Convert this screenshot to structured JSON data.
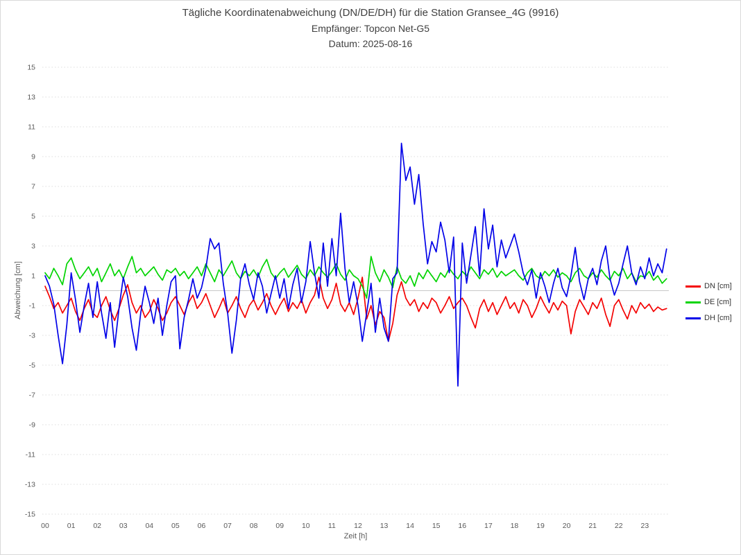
{
  "header": {
    "title": "Tägliche Koordinatenabweichung (DN/DE/DH) für die Station Gransee_4G (9916)",
    "subtitle_receiver": "Empfänger: Topcon Net-G5",
    "subtitle_date": "Datum: 2025-08-16"
  },
  "chart_data": {
    "type": "line",
    "title": "Tägliche Koordinatenabweichung (DN/DE/DH) für die Station Gransee_4G (9916)",
    "subtitle": "Empfänger: Topcon Net-G5 — Datum: 2025-08-16",
    "xlabel": "Zeit [h]",
    "ylabel": "Abweichung [cm]",
    "xlim": [
      0,
      24
    ],
    "ylim": [
      -15,
      15
    ],
    "grid": {
      "visible": true,
      "style": "dotted",
      "color": "#dcdcdc",
      "zero_line_color": "#c8c8c8"
    },
    "legend_position": "right-outside",
    "x_tick_labels": [
      "00",
      "01",
      "02",
      "03",
      "04",
      "05",
      "06",
      "07",
      "08",
      "09",
      "10",
      "11",
      "12",
      "13",
      "14",
      "15",
      "16",
      "17",
      "18",
      "19",
      "20",
      "21",
      "22",
      "23"
    ],
    "y_ticks": [
      15,
      13,
      11,
      9,
      7,
      5,
      3,
      1,
      -1,
      -3,
      -5,
      -7,
      -9,
      -11,
      -13,
      -15
    ],
    "x_start_hour": 0,
    "sampling_interval_minutes": 10,
    "series": [
      {
        "name": "DN [cm]",
        "color": "#f40000",
        "values": [
          0.3,
          -0.4,
          -1.2,
          -0.8,
          -1.5,
          -1.0,
          -0.5,
          -1.4,
          -2.0,
          -1.2,
          -0.6,
          -1.5,
          -1.8,
          -1.0,
          -0.4,
          -1.3,
          -2.0,
          -1.2,
          -0.3,
          0.4,
          -0.8,
          -1.5,
          -1.0,
          -1.8,
          -1.4,
          -0.6,
          -1.2,
          -2.0,
          -1.5,
          -0.8,
          -0.4,
          -1.0,
          -1.6,
          -0.8,
          -0.3,
          -1.2,
          -0.8,
          -0.2,
          -1.0,
          -1.8,
          -1.2,
          -0.5,
          -1.5,
          -1.0,
          -0.4,
          -1.2,
          -1.8,
          -1.0,
          -0.6,
          -1.3,
          -0.8,
          -0.2,
          -1.0,
          -1.6,
          -1.0,
          -0.5,
          -1.4,
          -0.8,
          -1.2,
          -0.6,
          -1.5,
          -0.8,
          -0.3,
          0.9,
          -0.5,
          -1.2,
          -0.6,
          0.5,
          -0.9,
          -1.4,
          -0.8,
          -1.6,
          -0.5,
          0.9,
          -1.9,
          -1.0,
          -2.3,
          -1.4,
          -1.8,
          -3.4,
          -2.2,
          -0.3,
          0.6,
          -0.5,
          -1.0,
          -0.6,
          -1.4,
          -0.8,
          -1.2,
          -0.5,
          -0.8,
          -1.5,
          -1.0,
          -0.4,
          -1.2,
          -0.8,
          -0.5,
          -1.0,
          -1.8,
          -2.5,
          -1.2,
          -0.6,
          -1.4,
          -0.8,
          -1.6,
          -1.0,
          -0.4,
          -1.2,
          -0.8,
          -1.5,
          -0.6,
          -1.0,
          -1.8,
          -1.2,
          -0.4,
          -1.0,
          -1.5,
          -0.8,
          -1.3,
          -0.7,
          -1.0,
          -2.9,
          -1.4,
          -0.6,
          -1.1,
          -1.6,
          -0.8,
          -1.2,
          -0.5,
          -1.6,
          -2.4,
          -1.0,
          -0.6,
          -1.3,
          -1.9,
          -1.0,
          -1.5,
          -0.8,
          -1.2,
          -0.9,
          -1.4,
          -1.1,
          -1.3,
          -1.2
        ]
      },
      {
        "name": "DE [cm]",
        "color": "#00d400",
        "values": [
          1.2,
          0.8,
          1.5,
          1.0,
          0.4,
          1.8,
          2.2,
          1.4,
          0.8,
          1.2,
          1.6,
          1.0,
          1.5,
          0.6,
          1.2,
          1.8,
          1.0,
          1.4,
          0.8,
          1.6,
          2.3,
          1.2,
          1.5,
          1.0,
          1.3,
          1.6,
          1.1,
          0.7,
          1.4,
          1.2,
          1.5,
          1.0,
          1.3,
          0.8,
          1.2,
          1.6,
          1.0,
          1.8,
          1.2,
          0.6,
          1.4,
          1.0,
          1.5,
          2.0,
          1.2,
          0.8,
          1.3,
          1.0,
          1.4,
          0.9,
          1.6,
          2.1,
          1.2,
          0.8,
          1.2,
          1.5,
          0.9,
          1.3,
          1.7,
          1.1,
          0.8,
          1.4,
          1.0,
          1.6,
          1.2,
          0.9,
          1.3,
          1.8,
          1.1,
          0.7,
          1.4,
          1.0,
          0.8,
          0.3,
          -0.5,
          2.3,
          1.2,
          0.6,
          1.4,
          0.9,
          0.2,
          1.6,
          0.8,
          0.5,
          1.0,
          0.3,
          1.2,
          0.8,
          1.4,
          1.0,
          0.6,
          1.2,
          0.9,
          1.5,
          1.1,
          0.8,
          1.3,
          1.0,
          1.6,
          1.2,
          0.8,
          1.4,
          1.1,
          1.5,
          0.9,
          1.3,
          1.0,
          1.2,
          1.4,
          1.0,
          0.7,
          1.2,
          1.5,
          1.0,
          0.8,
          1.3,
          1.0,
          1.4,
          0.9,
          1.2,
          1.0,
          0.6,
          1.2,
          1.5,
          1.0,
          0.8,
          1.2,
          0.9,
          1.4,
          1.0,
          0.7,
          1.3,
          1.0,
          1.5,
          0.8,
          1.2,
          0.6,
          1.0,
          0.9,
          1.3,
          0.7,
          1.0,
          0.5,
          0.8
        ]
      },
      {
        "name": "DH [cm]",
        "color": "#0000e8",
        "values": [
          1.0,
          0.3,
          -0.9,
          -3.0,
          -4.9,
          -2.3,
          1.2,
          -0.6,
          -2.8,
          -1.0,
          0.5,
          -1.8,
          0.6,
          -1.5,
          -3.2,
          -0.8,
          -3.8,
          -1.2,
          0.9,
          -0.4,
          -2.5,
          -4.0,
          -1.5,
          0.3,
          -0.8,
          -2.2,
          -0.5,
          -3.0,
          -1.0,
          0.6,
          1.0,
          -3.9,
          -1.8,
          -0.6,
          0.8,
          -0.5,
          0.2,
          1.5,
          3.5,
          2.8,
          3.2,
          0.5,
          -1.5,
          -4.2,
          -2.0,
          0.8,
          1.8,
          0.4,
          -0.6,
          1.2,
          0.3,
          -1.5,
          -0.2,
          1.0,
          -0.5,
          0.8,
          -1.2,
          0.4,
          1.5,
          -0.8,
          0.6,
          3.3,
          1.2,
          -0.5,
          3.2,
          0.3,
          3.5,
          1.0,
          5.2,
          1.5,
          -0.8,
          0.6,
          -1.0,
          -3.4,
          -1.5,
          0.5,
          -2.8,
          -0.5,
          -2.5,
          -3.4,
          0.8,
          1.2,
          9.9,
          7.4,
          8.3,
          5.8,
          7.8,
          4.5,
          1.8,
          3.3,
          2.6,
          4.6,
          3.4,
          1.2,
          3.6,
          -6.4,
          3.2,
          0.5,
          2.4,
          4.3,
          1.0,
          5.5,
          2.8,
          4.4,
          1.6,
          3.4,
          2.2,
          3.0,
          3.8,
          2.6,
          1.2,
          0.4,
          1.4,
          -0.5,
          1.2,
          0.3,
          -0.8,
          0.5,
          1.5,
          0.2,
          -0.4,
          1.0,
          2.9,
          0.6,
          -0.6,
          0.8,
          1.5,
          0.4,
          2.0,
          3.0,
          0.8,
          -0.3,
          0.5,
          1.8,
          3.0,
          1.2,
          0.4,
          1.6,
          0.8,
          2.2,
          1.0,
          1.8,
          1.2,
          2.8
        ]
      }
    ]
  }
}
